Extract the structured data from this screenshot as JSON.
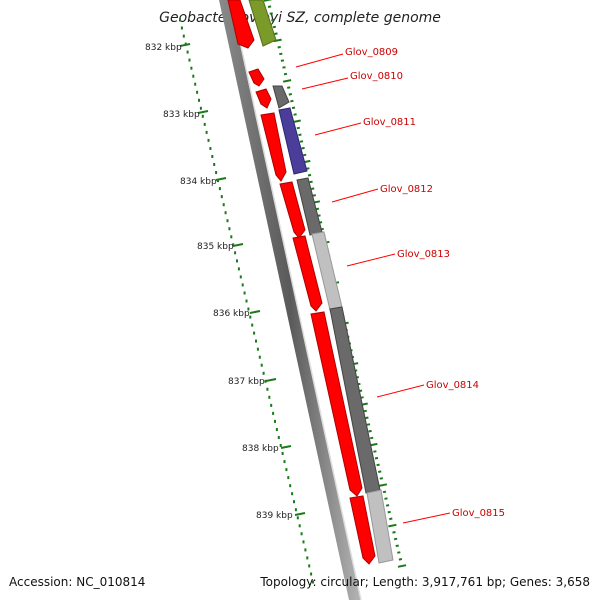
{
  "title": "Geobacter lovleyi SZ, complete genome",
  "accession": "Accession: NC_010814",
  "summary": "Topology: circular; Length: 3,917,761 bp; Genes: 3,658",
  "kbp_labels": [
    "832 kbp",
    "833 kbp",
    "834 kbp",
    "835 kbp",
    "836 kbp",
    "837 kbp",
    "838 kbp",
    "839 kbp"
  ],
  "gene_labels": [
    "Glov_0809",
    "Glov_0810",
    "Glov_0811",
    "Glov_0812",
    "Glov_0813",
    "Glov_0814",
    "Glov_0815"
  ],
  "colors": {
    "gene": "#ff0000",
    "gene_dark": "#c00000",
    "label_line": "#ff0000",
    "label_text": "#cc0000",
    "tick_green": "#1a7a1a",
    "backbone_dark": "#555555",
    "backbone_light": "#9a9a9a",
    "feature_green": "#7a9a2a",
    "feature_purple": "#4a3e9a",
    "feature_grey_dark": "#6a6a6a",
    "feature_grey_light": "#c0c0c0"
  }
}
